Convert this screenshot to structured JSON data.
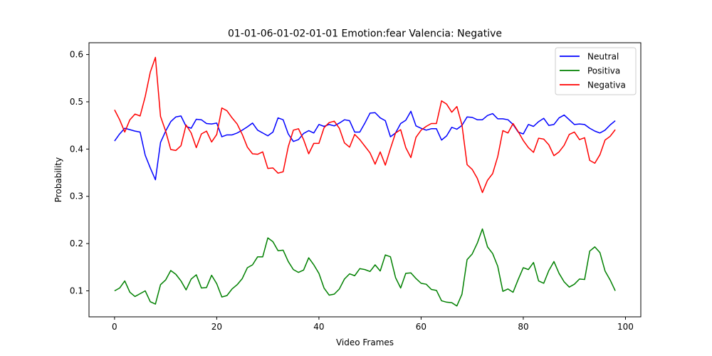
{
  "chart_data": {
    "type": "line",
    "title": "01-01-06-01-02-01-01 Emotion:fear Valencia: Negative",
    "xlabel": "Video Frames",
    "ylabel": "Probability",
    "xlim": [
      -5,
      103
    ],
    "ylim": [
      0.045,
      0.625
    ],
    "xticks": [
      0,
      20,
      40,
      60,
      80,
      100
    ],
    "yticks": [
      0.1,
      0.2,
      0.3,
      0.4,
      0.5,
      0.6
    ],
    "xtick_labels": [
      "0",
      "20",
      "40",
      "60",
      "80",
      "100"
    ],
    "ytick_labels": [
      "0.1",
      "0.2",
      "0.3",
      "0.4",
      "0.5",
      "0.6"
    ],
    "grid": false,
    "legend": "top-right",
    "series": [
      {
        "name": "Neutral",
        "color": "#0000ff",
        "values": [
          0.417,
          0.432,
          0.444,
          0.441,
          0.438,
          0.436,
          0.387,
          0.36,
          0.335,
          0.414,
          0.438,
          0.458,
          0.468,
          0.47,
          0.448,
          0.444,
          0.463,
          0.462,
          0.454,
          0.453,
          0.455,
          0.426,
          0.43,
          0.43,
          0.434,
          0.44,
          0.447,
          0.455,
          0.44,
          0.434,
          0.428,
          0.436,
          0.466,
          0.462,
          0.432,
          0.416,
          0.42,
          0.433,
          0.439,
          0.434,
          0.452,
          0.448,
          0.452,
          0.449,
          0.455,
          0.462,
          0.46,
          0.436,
          0.436,
          0.455,
          0.476,
          0.477,
          0.466,
          0.46,
          0.426,
          0.434,
          0.454,
          0.461,
          0.48,
          0.449,
          0.444,
          0.44,
          0.443,
          0.443,
          0.419,
          0.428,
          0.446,
          0.442,
          0.45,
          0.468,
          0.467,
          0.462,
          0.462,
          0.471,
          0.475,
          0.464,
          0.464,
          0.462,
          0.452,
          0.436,
          0.432,
          0.452,
          0.448,
          0.458,
          0.465,
          0.45,
          0.452,
          0.466,
          0.472,
          0.462,
          0.452,
          0.453,
          0.452,
          0.444,
          0.438,
          0.434,
          0.44,
          0.451,
          0.46
        ]
      },
      {
        "name": "Positiva",
        "color": "#008000",
        "values": [
          0.1,
          0.106,
          0.121,
          0.097,
          0.088,
          0.094,
          0.1,
          0.077,
          0.072,
          0.113,
          0.123,
          0.143,
          0.135,
          0.121,
          0.102,
          0.125,
          0.134,
          0.106,
          0.107,
          0.133,
          0.115,
          0.087,
          0.09,
          0.104,
          0.113,
          0.126,
          0.149,
          0.155,
          0.172,
          0.172,
          0.212,
          0.204,
          0.185,
          0.186,
          0.162,
          0.145,
          0.139,
          0.144,
          0.17,
          0.155,
          0.137,
          0.106,
          0.091,
          0.093,
          0.104,
          0.125,
          0.136,
          0.132,
          0.147,
          0.145,
          0.141,
          0.155,
          0.142,
          0.176,
          0.172,
          0.128,
          0.106,
          0.137,
          0.138,
          0.126,
          0.116,
          0.114,
          0.103,
          0.101,
          0.079,
          0.076,
          0.075,
          0.068,
          0.093,
          0.166,
          0.178,
          0.201,
          0.231,
          0.193,
          0.179,
          0.152,
          0.099,
          0.104,
          0.097,
          0.124,
          0.149,
          0.145,
          0.16,
          0.121,
          0.116,
          0.143,
          0.162,
          0.137,
          0.119,
          0.108,
          0.114,
          0.125,
          0.124,
          0.184,
          0.193,
          0.181,
          0.142,
          0.123,
          0.1
        ]
      },
      {
        "name": "Negativa",
        "color": "#ff0000",
        "values": [
          0.483,
          0.462,
          0.436,
          0.462,
          0.474,
          0.47,
          0.511,
          0.563,
          0.594,
          0.469,
          0.438,
          0.399,
          0.397,
          0.407,
          0.451,
          0.434,
          0.403,
          0.432,
          0.438,
          0.415,
          0.431,
          0.487,
          0.481,
          0.466,
          0.453,
          0.431,
          0.404,
          0.39,
          0.389,
          0.394,
          0.359,
          0.36,
          0.349,
          0.352,
          0.405,
          0.44,
          0.443,
          0.42,
          0.39,
          0.412,
          0.412,
          0.445,
          0.456,
          0.459,
          0.444,
          0.413,
          0.404,
          0.431,
          0.42,
          0.406,
          0.392,
          0.368,
          0.394,
          0.366,
          0.401,
          0.434,
          0.441,
          0.403,
          0.382,
          0.425,
          0.44,
          0.448,
          0.454,
          0.454,
          0.502,
          0.495,
          0.478,
          0.49,
          0.451,
          0.367,
          0.357,
          0.338,
          0.308,
          0.334,
          0.348,
          0.384,
          0.439,
          0.434,
          0.454,
          0.437,
          0.418,
          0.403,
          0.393,
          0.423,
          0.421,
          0.409,
          0.386,
          0.394,
          0.408,
          0.431,
          0.436,
          0.42,
          0.424,
          0.376,
          0.37,
          0.388,
          0.419,
          0.427,
          0.441
        ]
      }
    ]
  }
}
